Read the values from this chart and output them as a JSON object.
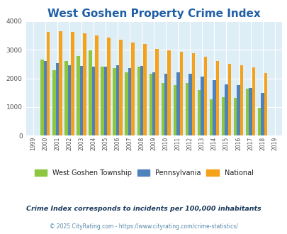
{
  "title": "West Goshen Property Crime Index",
  "years": [
    "1999",
    "2000",
    "2001",
    "2002",
    "2003",
    "2004",
    "2005",
    "2006",
    "2007",
    "2008",
    "2009",
    "2010",
    "2011",
    "2012",
    "2013",
    "2014",
    "2015",
    "2016",
    "2017",
    "2018",
    "2019"
  ],
  "west_goshen": [
    null,
    2650,
    2280,
    2600,
    2780,
    2980,
    2420,
    2360,
    2220,
    2420,
    2150,
    1840,
    1770,
    1840,
    1600,
    1270,
    1340,
    1330,
    1640,
    970,
    null
  ],
  "pennsylvania": [
    null,
    2600,
    2540,
    2460,
    2430,
    2420,
    2420,
    2460,
    2370,
    2430,
    2200,
    2160,
    2200,
    2160,
    2060,
    1950,
    1800,
    1760,
    1660,
    1490,
    null
  ],
  "national": [
    null,
    3610,
    3650,
    3610,
    3580,
    3510,
    3430,
    3360,
    3260,
    3210,
    3030,
    2970,
    2940,
    2870,
    2760,
    2610,
    2500,
    2450,
    2380,
    2190,
    null
  ],
  "color_wg": "#8dc63f",
  "color_pa": "#4f81bd",
  "color_nat": "#f6a11a",
  "bg_color": "#deeef6",
  "ylim": [
    0,
    4000
  ],
  "yticks": [
    0,
    1000,
    2000,
    3000,
    4000
  ],
  "title_color": "#1f5fa6",
  "title_fontsize": 11,
  "legend_labels": [
    "West Goshen Township",
    "Pennsylvania",
    "National"
  ],
  "footnote1": "Crime Index corresponds to incidents per 100,000 inhabitants",
  "footnote2": "© 2025 CityRating.com - https://www.cityrating.com/crime-statistics/",
  "footnote1_color": "#1a3a5c",
  "footnote2_color": "#5588aa"
}
